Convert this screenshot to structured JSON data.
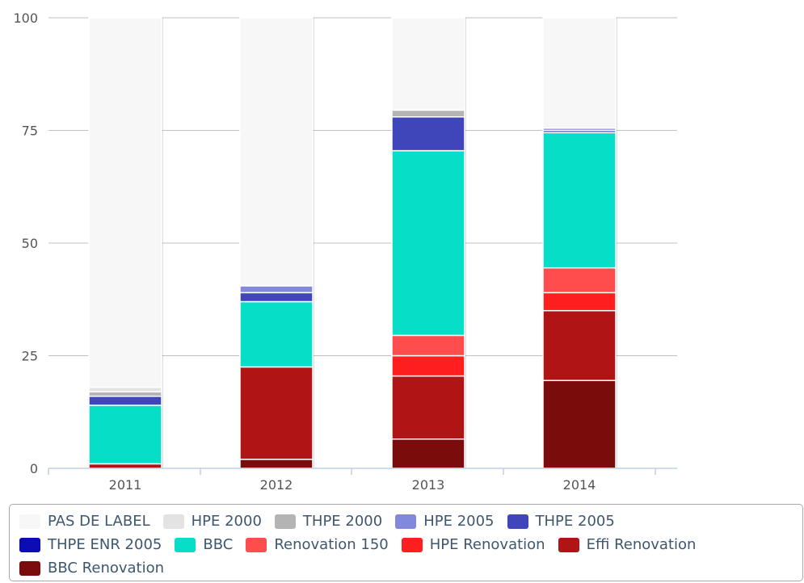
{
  "chart_data": {
    "type": "bar",
    "stacked": true,
    "categories": [
      "2011",
      "2012",
      "2013",
      "2014"
    ],
    "ylim": [
      0,
      100
    ],
    "yticks": [
      0,
      25,
      50,
      75,
      100
    ],
    "grid": true,
    "legend_position": "bottom",
    "series": [
      {
        "name": "BBC Renovation",
        "color": "#7b0c0c",
        "values": [
          0,
          2,
          6.5,
          19.5
        ]
      },
      {
        "name": "Effi Renovation",
        "color": "#b01414",
        "values": [
          1,
          20.5,
          14,
          15.5
        ]
      },
      {
        "name": "HPE Renovation",
        "color": "#ff1f1f",
        "values": [
          0,
          0,
          4.5,
          4
        ]
      },
      {
        "name": "Renovation 150",
        "color": "#ff4c4c",
        "values": [
          0,
          0,
          4.5,
          5.5
        ]
      },
      {
        "name": "BBC",
        "color": "#06dec8",
        "values": [
          13,
          14.5,
          41,
          30
        ]
      },
      {
        "name": "THPE ENR 2005",
        "color": "#0c0cb4",
        "values": [
          0,
          0,
          0,
          0
        ]
      },
      {
        "name": "THPE 2005",
        "color": "#3e46b9",
        "values": [
          2,
          2,
          7.5,
          0.5
        ]
      },
      {
        "name": "HPE 2005",
        "color": "#8289dc",
        "values": [
          0,
          1.5,
          0,
          0.5
        ]
      },
      {
        "name": "THPE 2000",
        "color": "#b4b4b4",
        "values": [
          1,
          0,
          1.5,
          0
        ]
      },
      {
        "name": "HPE 2000",
        "color": "#e3e3e3",
        "values": [
          1,
          0,
          0,
          0
        ]
      },
      {
        "name": "PAS DE LABEL",
        "color": "#f7f7f7",
        "values": [
          82,
          59.5,
          20.5,
          24.5
        ]
      }
    ]
  },
  "legend": {
    "rows": [
      [
        {
          "label": "PAS DE LABEL",
          "color": "#f7f7f7"
        },
        {
          "label": "HPE 2000",
          "color": "#e3e3e3"
        },
        {
          "label": "THPE 2000",
          "color": "#b4b4b4"
        },
        {
          "label": "HPE 2005",
          "color": "#8289dc"
        },
        {
          "label": "THPE 2005",
          "color": "#3e46b9"
        }
      ],
      [
        {
          "label": "THPE ENR 2005",
          "color": "#0c0cb4"
        },
        {
          "label": "BBC",
          "color": "#06dec8"
        },
        {
          "label": "Renovation 150",
          "color": "#ff4c4c"
        },
        {
          "label": "HPE Renovation",
          "color": "#ff1f1f"
        },
        {
          "label": "Effi Renovation",
          "color": "#b01414"
        }
      ],
      [
        {
          "label": "BBC Renovation",
          "color": "#7b0c0c"
        }
      ]
    ]
  }
}
